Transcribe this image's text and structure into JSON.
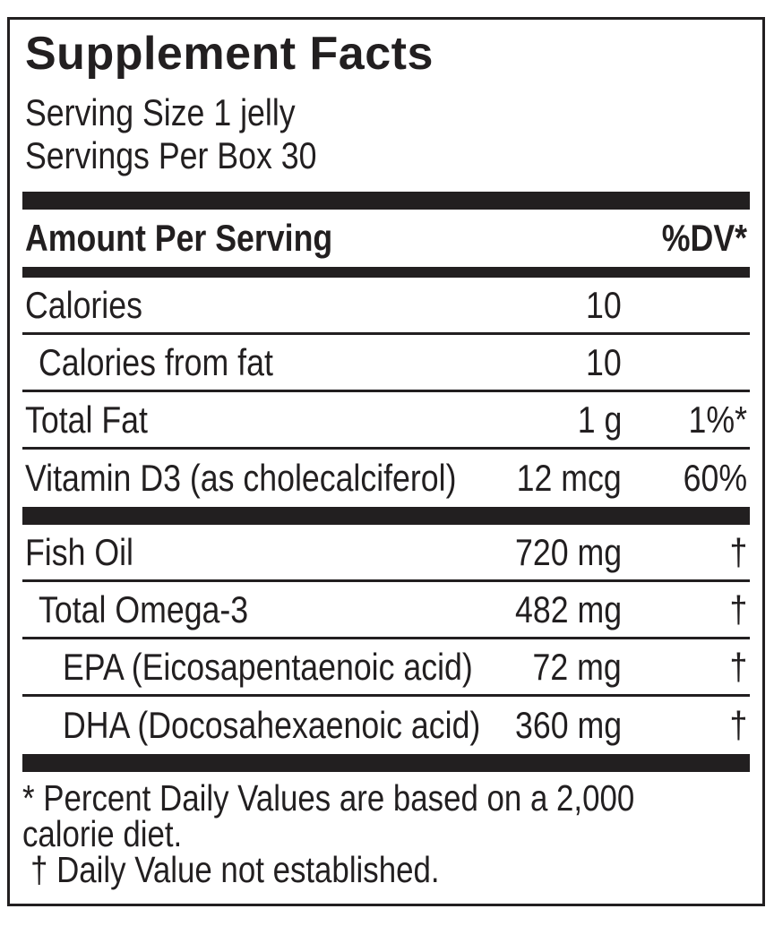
{
  "label": {
    "title": "Supplement Facts",
    "serving_size": "Serving Size 1 jelly",
    "servings_per_box": "Servings Per Box 30",
    "header": {
      "amount_per_serving": "Amount Per Serving",
      "dv": "%DV*"
    },
    "sections": [
      {
        "rows": [
          {
            "name": "Calories",
            "amount": "10",
            "dv": "",
            "indent": 0
          },
          {
            "name": "Calories from fat",
            "amount": "10",
            "dv": "",
            "indent": 1
          },
          {
            "name": "Total Fat",
            "amount": "1 g",
            "dv": "1%*",
            "indent": 0
          },
          {
            "name": "Vitamin D3 (as cholecalciferol)",
            "amount": "12 mcg",
            "dv": "60%",
            "indent": 0
          }
        ]
      },
      {
        "rows": [
          {
            "name": "Fish Oil",
            "amount": "720 mg",
            "dv": "†",
            "indent": 0
          },
          {
            "name": "Total Omega-3",
            "amount": "482 mg",
            "dv": "†",
            "indent": 1
          },
          {
            "name": "EPA (Eicosapentaenoic acid)",
            "amount": "72 mg",
            "dv": "†",
            "indent": 2
          },
          {
            "name": "DHA (Docosahexaenoic acid)",
            "amount": "360 mg",
            "dv": "†",
            "indent": 2
          }
        ]
      }
    ],
    "footnote_lines": [
      "* Percent Daily Values are based on a 2,000",
      "calorie diet.",
      "† Daily Value not established."
    ],
    "colors": {
      "ink": "#221f20",
      "background": "#ffffff"
    }
  }
}
